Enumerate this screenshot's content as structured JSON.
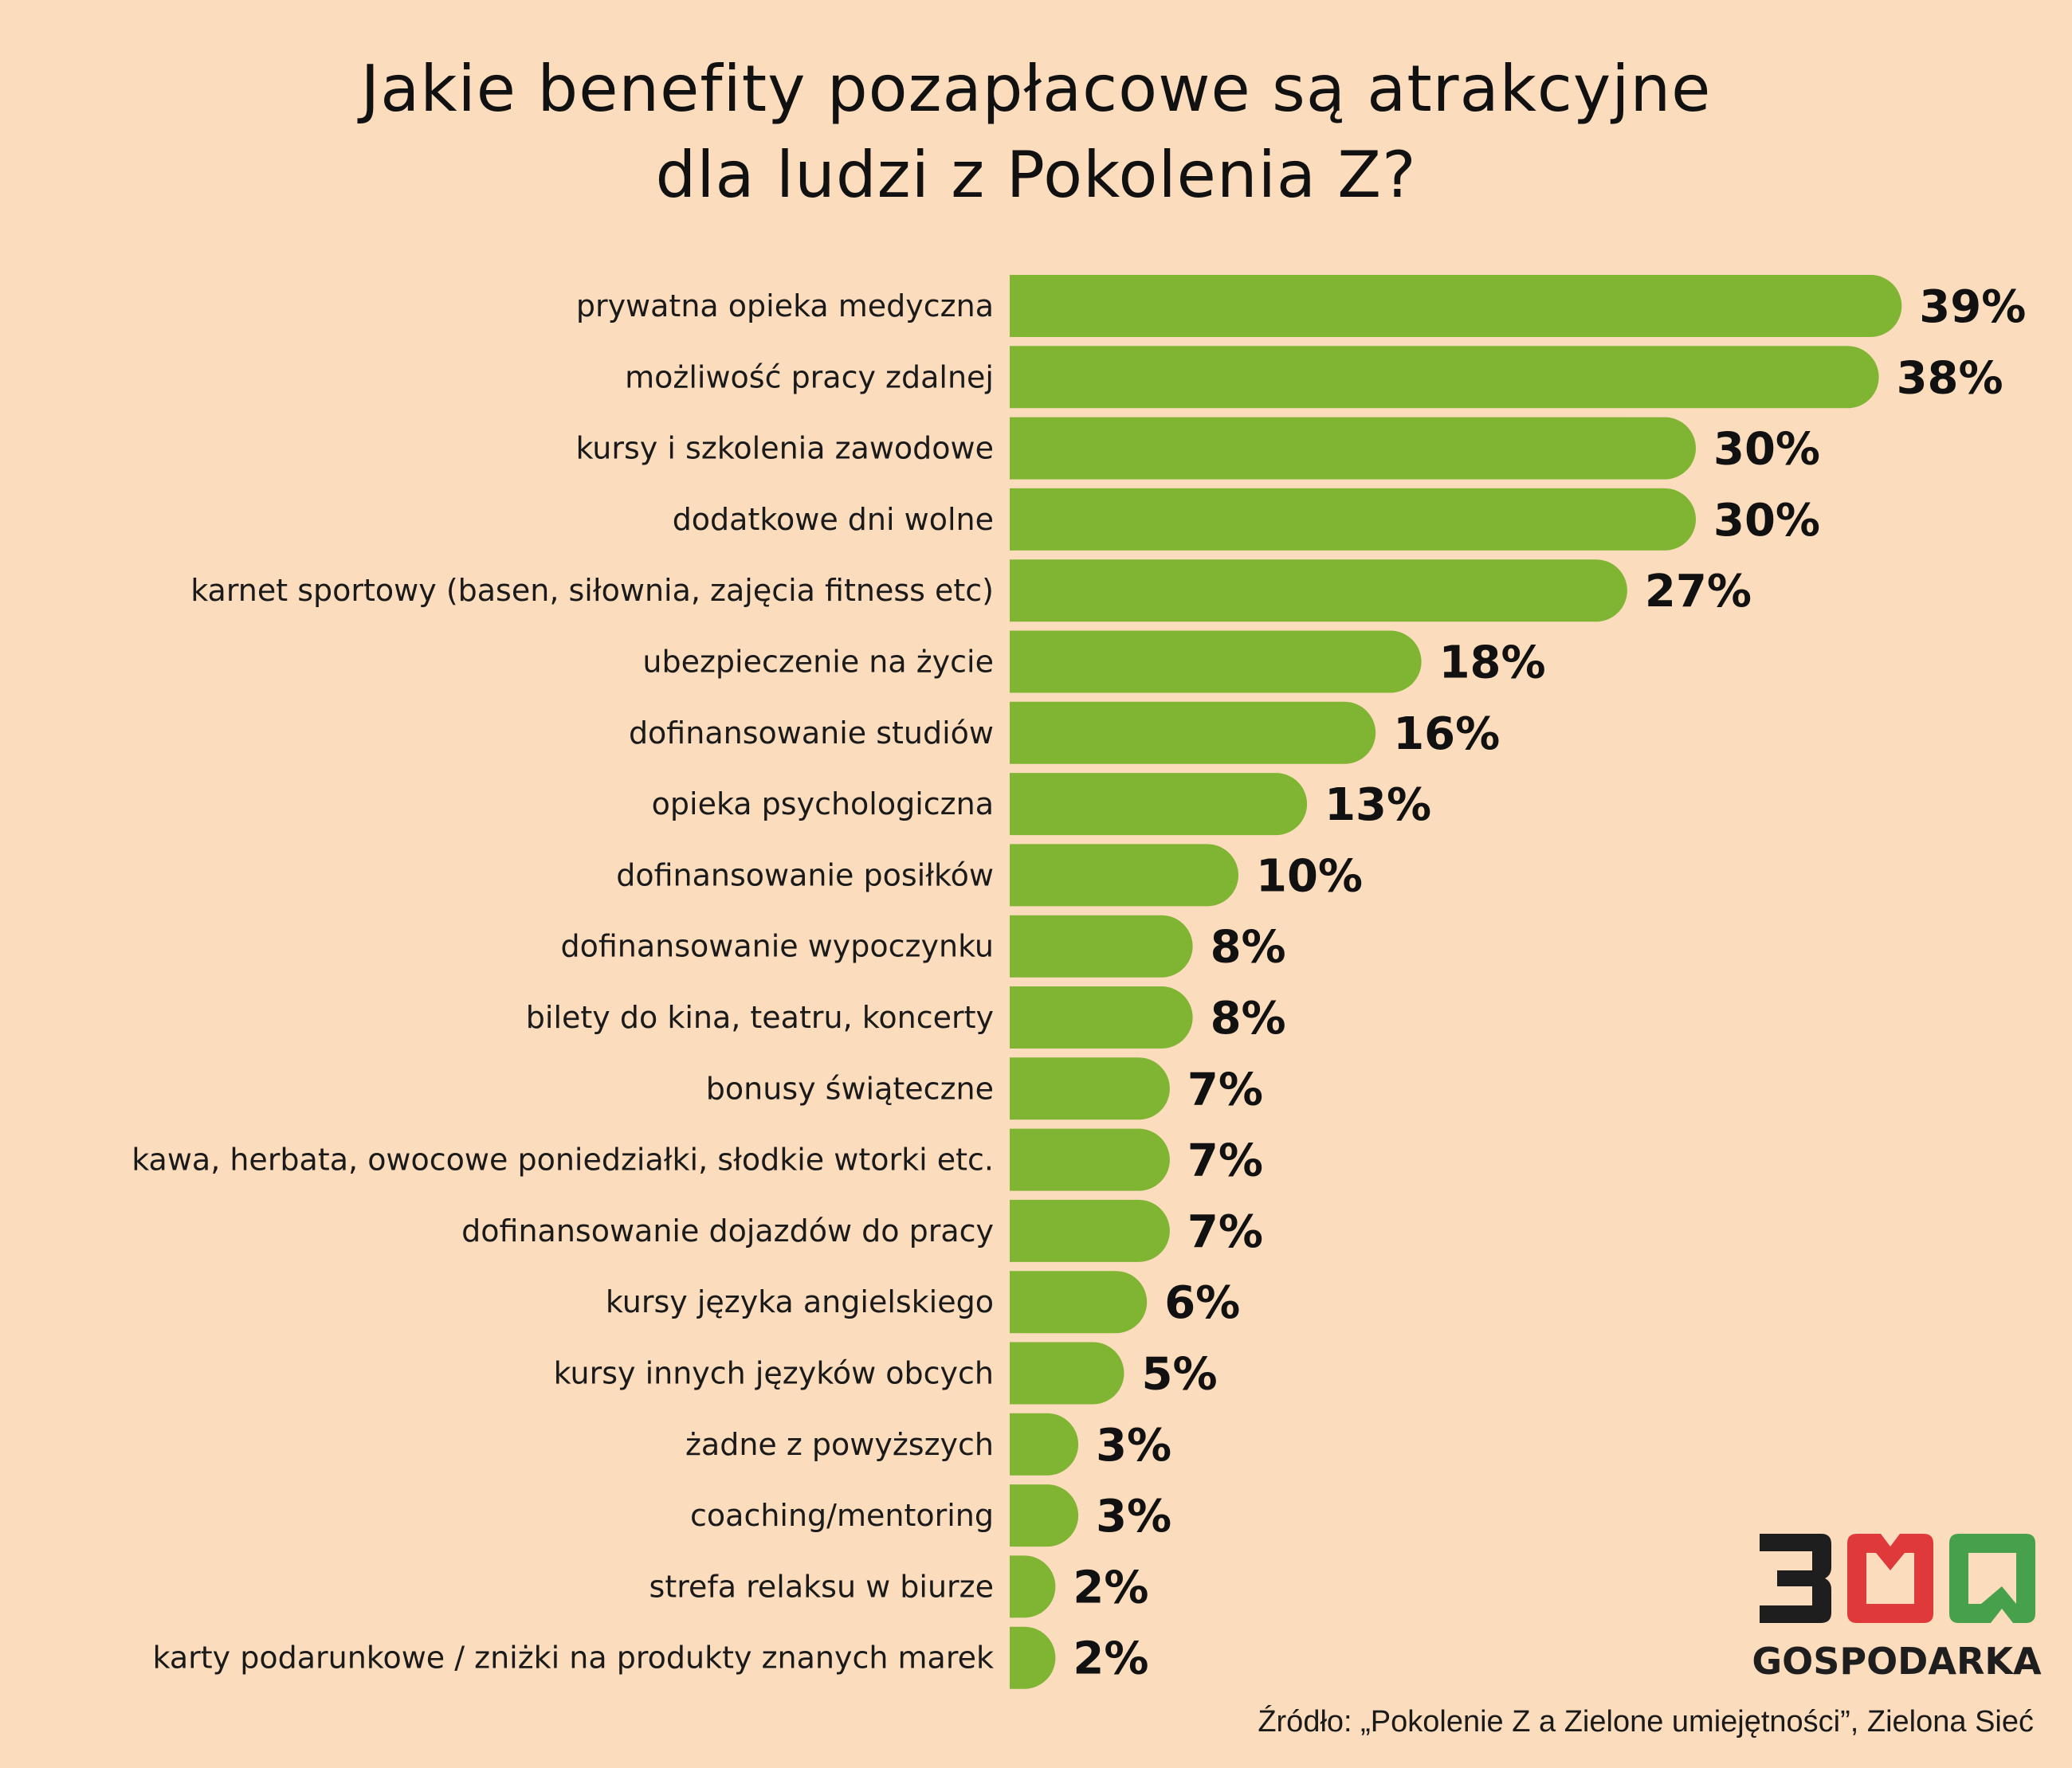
{
  "title_lines": [
    "Jakie benefity pozapłacowe są atrakcyjne",
    "dla ludzi z Pokolenia Z?"
  ],
  "colors": {
    "bar": "#80b534",
    "background": "#fbdcbd",
    "logo_dark": "#1e1e1e",
    "logo_red": "#e0393b",
    "logo_green": "#47a04b"
  },
  "chart_data": {
    "type": "bar",
    "orientation": "horizontal",
    "title": "Jakie benefity pozapłacowe są atrakcyjne dla ludzi z Pokolenia Z?",
    "categories": [
      "prywatna opieka medyczna",
      "możliwość pracy zdalnej",
      "kursy i szkolenia zawodowe",
      "dodatkowe dni wolne",
      "karnet sportowy (basen, siłownia, zajęcia fitness etc)",
      "ubezpieczenie na życie",
      "dofinansowanie studiów",
      "opieka psychologiczna",
      "dofinansowanie posiłków",
      "dofinansowanie wypoczynku",
      "bilety do kina, teatru, koncerty",
      "bonusy świąteczne",
      "kawa, herbata, owocowe poniedziałki, słodkie wtorki etc.",
      "dofinansowanie dojazdów do pracy",
      "kursy języka angielskiego",
      "kursy innych języków obcych",
      "żadne z powyższych",
      "coaching/mentoring",
      "strefa relaksu w biurze",
      "karty podarunkowe / zniżki na produkty znanych marek"
    ],
    "values": [
      39,
      38,
      30,
      30,
      27,
      18,
      16,
      13,
      10,
      8,
      8,
      7,
      7,
      7,
      6,
      5,
      3,
      3,
      2,
      2
    ],
    "value_labels": [
      "39%",
      "38%",
      "30%",
      "30%",
      "27%",
      "18%",
      "16%",
      "13%",
      "10%",
      "8%",
      "8%",
      "7%",
      "7%",
      "7%",
      "6%",
      "5%",
      "3%",
      "3%",
      "2%",
      "2%"
    ],
    "grid": false,
    "legend": "none"
  },
  "logo": {
    "text": "GOSPODARKA",
    "number": "300"
  },
  "source": "Źródło: „Pokolenie Z a Zielone umiejętności”, Zielona Sieć"
}
